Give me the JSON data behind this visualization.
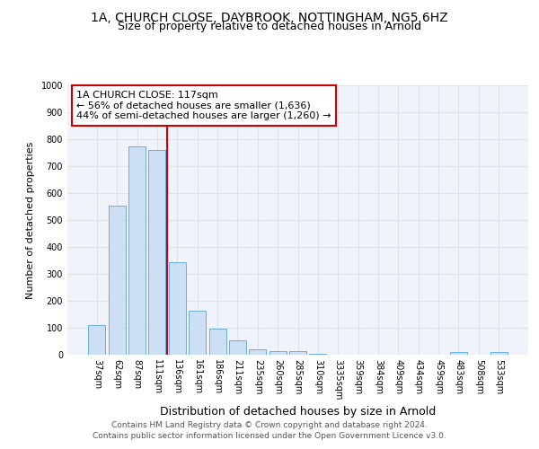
{
  "title1": "1A, CHURCH CLOSE, DAYBROOK, NOTTINGHAM, NG5 6HZ",
  "title2": "Size of property relative to detached houses in Arnold",
  "xlabel": "Distribution of detached houses by size in Arnold",
  "ylabel": "Number of detached properties",
  "categories": [
    "37sqm",
    "62sqm",
    "87sqm",
    "111sqm",
    "136sqm",
    "161sqm",
    "186sqm",
    "211sqm",
    "235sqm",
    "260sqm",
    "285sqm",
    "310sqm",
    "3335sqm",
    "359sqm",
    "384sqm",
    "409sqm",
    "434sqm",
    "459sqm",
    "483sqm",
    "508sqm",
    "533sqm"
  ],
  "values": [
    110,
    555,
    775,
    760,
    345,
    163,
    97,
    55,
    20,
    15,
    13,
    5,
    0,
    0,
    0,
    0,
    0,
    0,
    10,
    0,
    10
  ],
  "bar_color": "#ccdff5",
  "bar_edge_color": "#6aaee0",
  "vline_color": "#cc0000",
  "annotation_text": "1A CHURCH CLOSE: 117sqm\n← 56% of detached houses are smaller (1,636)\n44% of semi-detached houses are larger (1,260) →",
  "annotation_box_color": "#ffffff",
  "annotation_box_edge": "#cc0000",
  "footnote1": "Contains HM Land Registry data © Crown copyright and database right 2024.",
  "footnote2": "Contains public sector information licensed under the Open Government Licence v3.0.",
  "bg_color": "#ffffff",
  "plot_bg_color": "#f0f4fa",
  "grid_color": "#d8e4f0",
  "ylim": [
    0,
    1000
  ],
  "yticks": [
    0,
    100,
    200,
    300,
    400,
    500,
    600,
    700,
    800,
    900,
    1000
  ]
}
